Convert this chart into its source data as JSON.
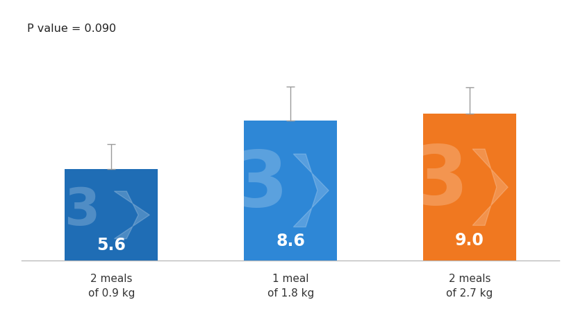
{
  "categories": [
    "2 meals\nof 0.9 kg",
    "1 meal\nof 1.8 kg",
    "2 meals\nof 2.7 kg"
  ],
  "values": [
    5.6,
    8.6,
    9.0
  ],
  "errors": [
    1.55,
    2.05,
    1.6
  ],
  "bar_colors": [
    "#1F6DB5",
    "#2E87D6",
    "#F07820"
  ],
  "value_labels": [
    "5.6",
    "8.6",
    "9.0"
  ],
  "p_value_text": "P value = 0.090",
  "background_color": "#ffffff",
  "text_color_inside": "#ffffff",
  "ylim": [
    0,
    13.5
  ],
  "bar_width": 0.52,
  "figsize": [
    8.2,
    4.46
  ],
  "dpi": 100
}
